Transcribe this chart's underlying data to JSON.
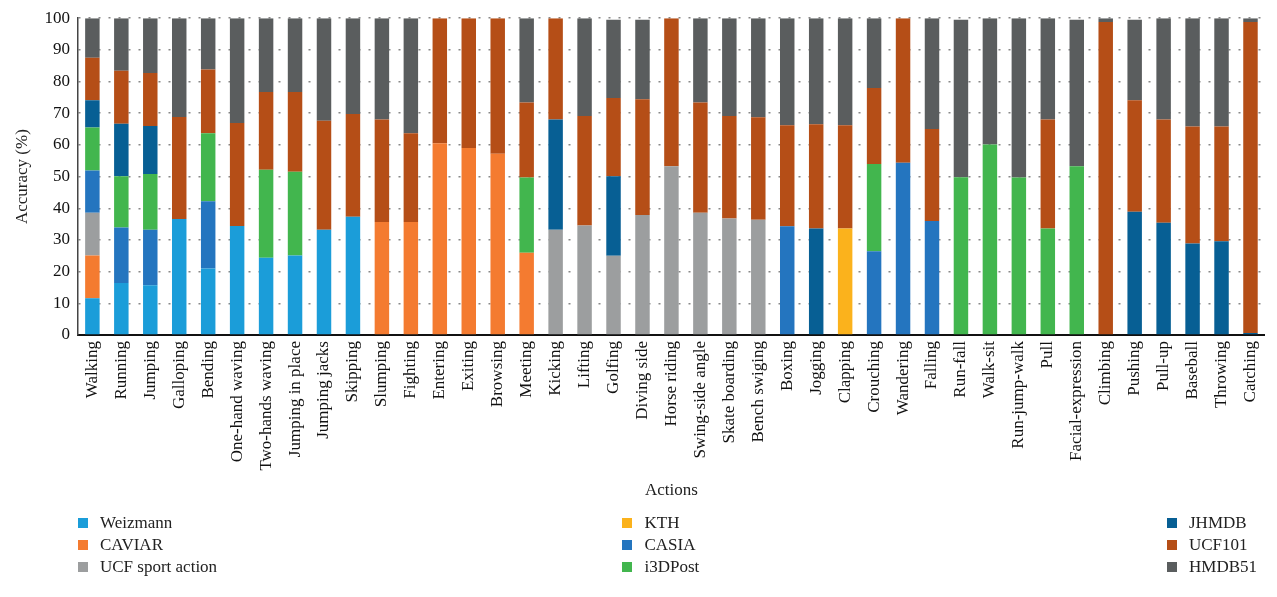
{
  "chart_data": {
    "type": "bar",
    "stacked": true,
    "xlabel": "Actions",
    "ylabel": "Accuracy (%)",
    "ylim": [
      0,
      100
    ],
    "yticks": [
      0,
      10,
      20,
      30,
      40,
      50,
      60,
      70,
      80,
      90,
      100
    ],
    "grid": "y",
    "legend": "bottom",
    "categories": [
      "Walking",
      "Running",
      "Jumping",
      "Galloping",
      "Bending",
      "One-hand waving",
      "Two-hands waving",
      "Jumping in place",
      "Jumping jacks",
      "Skipping",
      "Slumping",
      "Fighting",
      "Entering",
      "Exiting",
      "Browsing",
      "Meeting",
      "Kicking",
      "Lifting",
      "Golfing",
      "Diving side",
      "Horse riding",
      "Swing-side angle",
      "Skate boarding",
      "Bench swiging",
      "Boxing",
      "Jogging",
      "Clapping",
      "Crouching",
      "Wandering",
      "Falling",
      "Run-fall",
      "Walk-sit",
      "Run-jump-walk",
      "Pull",
      "Facial-expression",
      "Climbing",
      "Pushing",
      "Pull-up",
      "Baseball",
      "Throwing",
      "Catching"
    ],
    "series": [
      {
        "name": "Weizmann",
        "color": "#1b9dd9",
        "values": [
          11.6,
          16.4,
          15.7,
          36.6,
          21.0,
          34.4,
          24.4,
          25.1,
          33.2,
          37.3,
          null,
          null,
          null,
          null,
          null,
          null,
          null,
          null,
          null,
          null,
          null,
          null,
          null,
          null,
          null,
          null,
          null,
          null,
          null,
          null,
          null,
          null,
          null,
          null,
          null,
          null,
          null,
          null,
          null,
          null,
          null
        ]
      },
      {
        "name": "CAVIAR",
        "color": "#f47b30",
        "values": [
          13.5,
          null,
          null,
          null,
          null,
          null,
          null,
          null,
          null,
          null,
          35.7,
          35.7,
          60.5,
          59.0,
          57.2,
          26.0,
          null,
          null,
          null,
          null,
          null,
          null,
          null,
          null,
          null,
          null,
          null,
          null,
          null,
          null,
          null,
          null,
          null,
          null,
          null,
          null,
          null,
          null,
          null,
          null,
          null
        ]
      },
      {
        "name": "UCF sport action",
        "color": "#9c9e9f",
        "values": [
          13.5,
          null,
          null,
          null,
          null,
          null,
          null,
          null,
          null,
          null,
          null,
          null,
          null,
          null,
          null,
          null,
          33.2,
          34.6,
          25.0,
          37.9,
          53.3,
          38.6,
          36.8,
          36.4,
          null,
          null,
          null,
          null,
          null,
          null,
          null,
          null,
          null,
          null,
          null,
          null,
          null,
          null,
          null,
          null,
          null
        ]
      },
      {
        "name": "KTH",
        "color": "#fbb21c",
        "values": [
          null,
          null,
          null,
          null,
          null,
          null,
          null,
          null,
          null,
          null,
          null,
          null,
          null,
          null,
          null,
          null,
          null,
          null,
          null,
          null,
          null,
          null,
          null,
          null,
          null,
          null,
          33.6,
          null,
          null,
          null,
          null,
          null,
          null,
          null,
          null,
          null,
          null,
          null,
          null,
          null,
          null
        ]
      },
      {
        "name": "CASIA",
        "color": "#2475bf",
        "values": [
          13.3,
          17.5,
          17.5,
          null,
          21.2,
          null,
          null,
          null,
          null,
          null,
          null,
          null,
          null,
          null,
          null,
          null,
          null,
          null,
          null,
          null,
          null,
          null,
          null,
          null,
          34.3,
          null,
          null,
          26.4,
          54.4,
          36.0,
          null,
          null,
          null,
          null,
          null,
          null,
          null,
          null,
          null,
          null,
          null
        ]
      },
      {
        "name": "i3DPost",
        "color": "#42b64e",
        "values": [
          13.6,
          16.2,
          17.6,
          null,
          21.5,
          null,
          27.8,
          26.4,
          null,
          null,
          null,
          null,
          null,
          null,
          null,
          23.7,
          null,
          null,
          null,
          null,
          null,
          null,
          null,
          null,
          null,
          null,
          null,
          27.6,
          null,
          null,
          49.8,
          60.1,
          49.7,
          33.6,
          53.3,
          null,
          null,
          null,
          null,
          null,
          null
        ]
      },
      {
        "name": "JHMDB",
        "color": "#075f94",
        "values": [
          8.6,
          16.6,
          15.2,
          null,
          null,
          null,
          null,
          null,
          null,
          null,
          null,
          null,
          null,
          null,
          null,
          null,
          34.8,
          null,
          25.1,
          null,
          null,
          null,
          null,
          null,
          null,
          33.6,
          null,
          null,
          null,
          null,
          null,
          null,
          null,
          null,
          null,
          null,
          38.9,
          35.4,
          28.9,
          29.6,
          0.6
        ]
      },
      {
        "name": "UCF101",
        "color": "#b54e17",
        "values": [
          13.4,
          16.7,
          16.7,
          32.2,
          20.1,
          32.5,
          24.5,
          25.2,
          34.4,
          32.5,
          32.3,
          28.0,
          39.5,
          41.0,
          42.8,
          23.7,
          32.0,
          34.5,
          24.7,
          36.5,
          46.7,
          34.8,
          32.3,
          32.3,
          31.9,
          32.9,
          32.6,
          24.0,
          45.6,
          29.0,
          null,
          null,
          null,
          34.4,
          null,
          98.8,
          35.2,
          32.6,
          36.9,
          36.2,
          98.2
        ]
      },
      {
        "name": "HMDB51",
        "color": "#5a5d5e",
        "values": [
          12.5,
          16.6,
          17.3,
          31.2,
          16.2,
          33.1,
          23.3,
          23.3,
          32.4,
          30.2,
          32.0,
          36.3,
          null,
          null,
          null,
          26.6,
          null,
          30.9,
          24.7,
          25.1,
          null,
          26.6,
          30.9,
          31.3,
          33.8,
          33.5,
          33.8,
          22.0,
          null,
          35.0,
          49.7,
          39.9,
          50.3,
          32.0,
          46.2,
          1.2,
          25.4,
          32.0,
          34.2,
          34.2,
          1.2
        ]
      }
    ]
  }
}
